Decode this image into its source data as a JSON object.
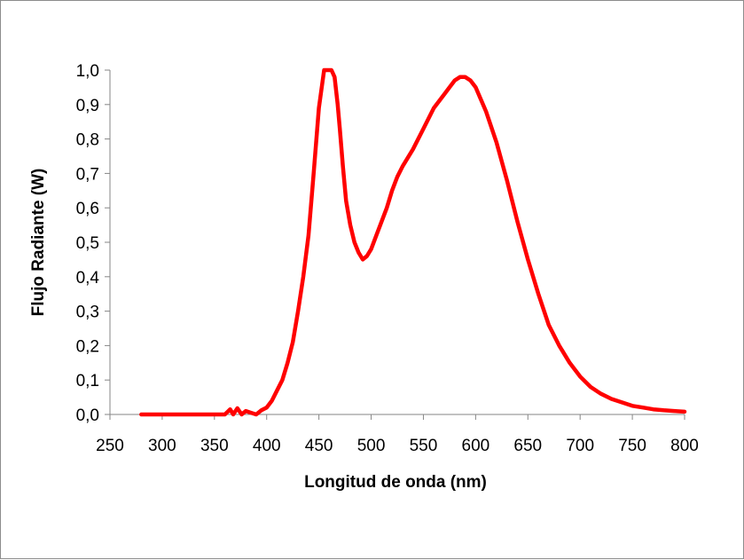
{
  "chart_data": {
    "type": "line",
    "title": "",
    "xlabel": "Longitud de onda (nm)",
    "ylabel": "Flujo Radiante (W)",
    "xlim": [
      250,
      800
    ],
    "ylim": [
      0,
      1.0
    ],
    "x_ticks": [
      250,
      300,
      350,
      400,
      450,
      500,
      550,
      600,
      650,
      700,
      750,
      800
    ],
    "y_ticks": [
      "0,0",
      "0,1",
      "0,2",
      "0,3",
      "0,4",
      "0,5",
      "0,6",
      "0,7",
      "0,8",
      "0,9",
      "1,0"
    ],
    "grid": false,
    "legend": "none",
    "series": [
      {
        "color": "#ff0000",
        "x": [
          280,
          300,
          340,
          360,
          365,
          368,
          372,
          376,
          380,
          385,
          390,
          395,
          400,
          405,
          410,
          415,
          420,
          425,
          430,
          435,
          440,
          445,
          450,
          455,
          458,
          462,
          465,
          468,
          470,
          473,
          476,
          480,
          484,
          488,
          492,
          496,
          500,
          505,
          510,
          515,
          520,
          525,
          530,
          540,
          550,
          560,
          570,
          580,
          585,
          590,
          595,
          600,
          610,
          620,
          630,
          640,
          650,
          660,
          670,
          680,
          690,
          700,
          710,
          720,
          730,
          740,
          750,
          760,
          770,
          780,
          790,
          800
        ],
        "y": [
          0.0,
          0.0,
          0.0,
          0.0,
          0.015,
          0.0,
          0.018,
          0.0,
          0.01,
          0.005,
          0.0,
          0.012,
          0.02,
          0.04,
          0.07,
          0.1,
          0.15,
          0.21,
          0.3,
          0.4,
          0.52,
          0.7,
          0.89,
          1.0,
          1.0,
          1.0,
          0.98,
          0.9,
          0.83,
          0.72,
          0.62,
          0.55,
          0.5,
          0.47,
          0.45,
          0.46,
          0.48,
          0.52,
          0.56,
          0.6,
          0.65,
          0.69,
          0.72,
          0.77,
          0.83,
          0.89,
          0.93,
          0.97,
          0.98,
          0.98,
          0.97,
          0.95,
          0.88,
          0.79,
          0.68,
          0.56,
          0.45,
          0.35,
          0.26,
          0.2,
          0.15,
          0.11,
          0.08,
          0.06,
          0.045,
          0.035,
          0.025,
          0.02,
          0.015,
          0.012,
          0.01,
          0.008
        ]
      }
    ]
  }
}
